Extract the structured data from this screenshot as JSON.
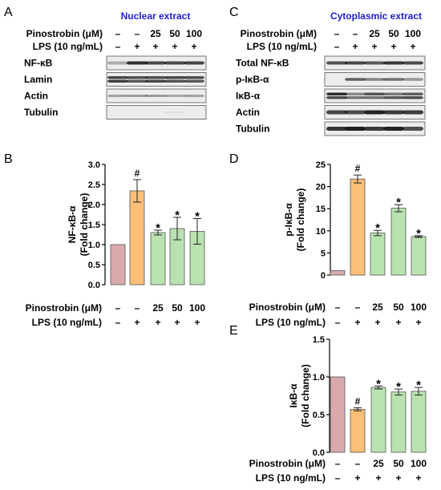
{
  "panels": {
    "A": {
      "letter": "A",
      "title": "Nuclear extract",
      "treatment_rows": [
        {
          "label": "Pinostrobin (μM)",
          "values": [
            "–",
            "–",
            "25",
            "50",
            "100"
          ]
        },
        {
          "label": "LPS (10 ng/mL)",
          "values": [
            "–",
            "+",
            "+",
            "+",
            "+"
          ]
        }
      ],
      "blot_labels": [
        "NF-κB",
        "Lamin",
        "Actin",
        "Tubulin"
      ]
    },
    "C": {
      "letter": "C",
      "title": "Cytoplasmic extract",
      "treatment_rows": [
        {
          "label": "Pinostrobin (μM)",
          "values": [
            "–",
            "–",
            "25",
            "50",
            "100"
          ]
        },
        {
          "label": "LPS (10 ng/mL)",
          "values": [
            "–",
            "+",
            "+",
            "+",
            "+"
          ]
        }
      ],
      "blot_labels": [
        "Total NF-κB",
        "p-IκB-α",
        "IκB-α",
        "Actin",
        "Tubulin"
      ]
    }
  },
  "colors": {
    "title_blue": "#1f1fc8",
    "bar_control": "#d9a9ac",
    "bar_lps": "#fbbf77",
    "bar_treated": "#b9e2b0"
  },
  "chart_data": [
    {
      "letter": "B",
      "type": "bar",
      "ylabel": [
        "NF-κB-α",
        "(Fold change)"
      ],
      "ylim": [
        0,
        3.0
      ],
      "yticks": [
        "0.0",
        "0.5",
        "1.0",
        "1.5",
        "2.0",
        "2.5",
        "3.0"
      ],
      "values": [
        1.0,
        2.34,
        1.3,
        1.4,
        1.33
      ],
      "errors": [
        0,
        0.28,
        0.06,
        0.28,
        0.32
      ],
      "marks": [
        "",
        "#",
        "*",
        "*",
        "*"
      ],
      "treatment_rows": [
        {
          "label": "Pinostrobin (μM)",
          "values": [
            "–",
            "–",
            "25",
            "50",
            "100"
          ]
        },
        {
          "label": "LPS (10 ng/mL)",
          "values": [
            "–",
            "+",
            "+",
            "+",
            "+"
          ]
        }
      ]
    },
    {
      "letter": "D",
      "type": "bar",
      "ylabel": [
        "p-IκB-α",
        "(Fold change)"
      ],
      "ylim": [
        0,
        25
      ],
      "yticks": [
        "0",
        "5",
        "10",
        "15",
        "20",
        "25"
      ],
      "values": [
        1.0,
        21.7,
        9.5,
        15.1,
        8.7
      ],
      "errors": [
        0,
        0.9,
        0.6,
        0.8,
        0.2
      ],
      "marks": [
        "",
        "#",
        "*",
        "*",
        "*"
      ],
      "treatment_rows": [
        {
          "label": "Pinostrobin (μM)",
          "values": [
            "–",
            "–",
            "25",
            "50",
            "100"
          ]
        },
        {
          "label": "LPS (10 ng/mL)",
          "values": [
            "–",
            "+",
            "+",
            "+",
            "+"
          ]
        }
      ]
    },
    {
      "letter": "E",
      "type": "bar",
      "ylabel": [
        "IκB-α",
        "(Fold change)"
      ],
      "ylim": [
        0,
        1.5
      ],
      "yticks": [
        "0.0",
        "0.5",
        "1.0",
        "1.5"
      ],
      "values": [
        1.0,
        0.57,
        0.86,
        0.8,
        0.81
      ],
      "errors": [
        0,
        0.02,
        0.02,
        0.04,
        0.05
      ],
      "marks": [
        "",
        "#",
        "*",
        "*",
        "*"
      ],
      "treatment_rows": [
        {
          "label": "Pinostrobin (μM)",
          "values": [
            "–",
            "–",
            "25",
            "50",
            "100"
          ]
        },
        {
          "label": "LPS (10 ng/mL)",
          "values": [
            "–",
            "+",
            "+",
            "+",
            "+"
          ]
        }
      ]
    }
  ]
}
